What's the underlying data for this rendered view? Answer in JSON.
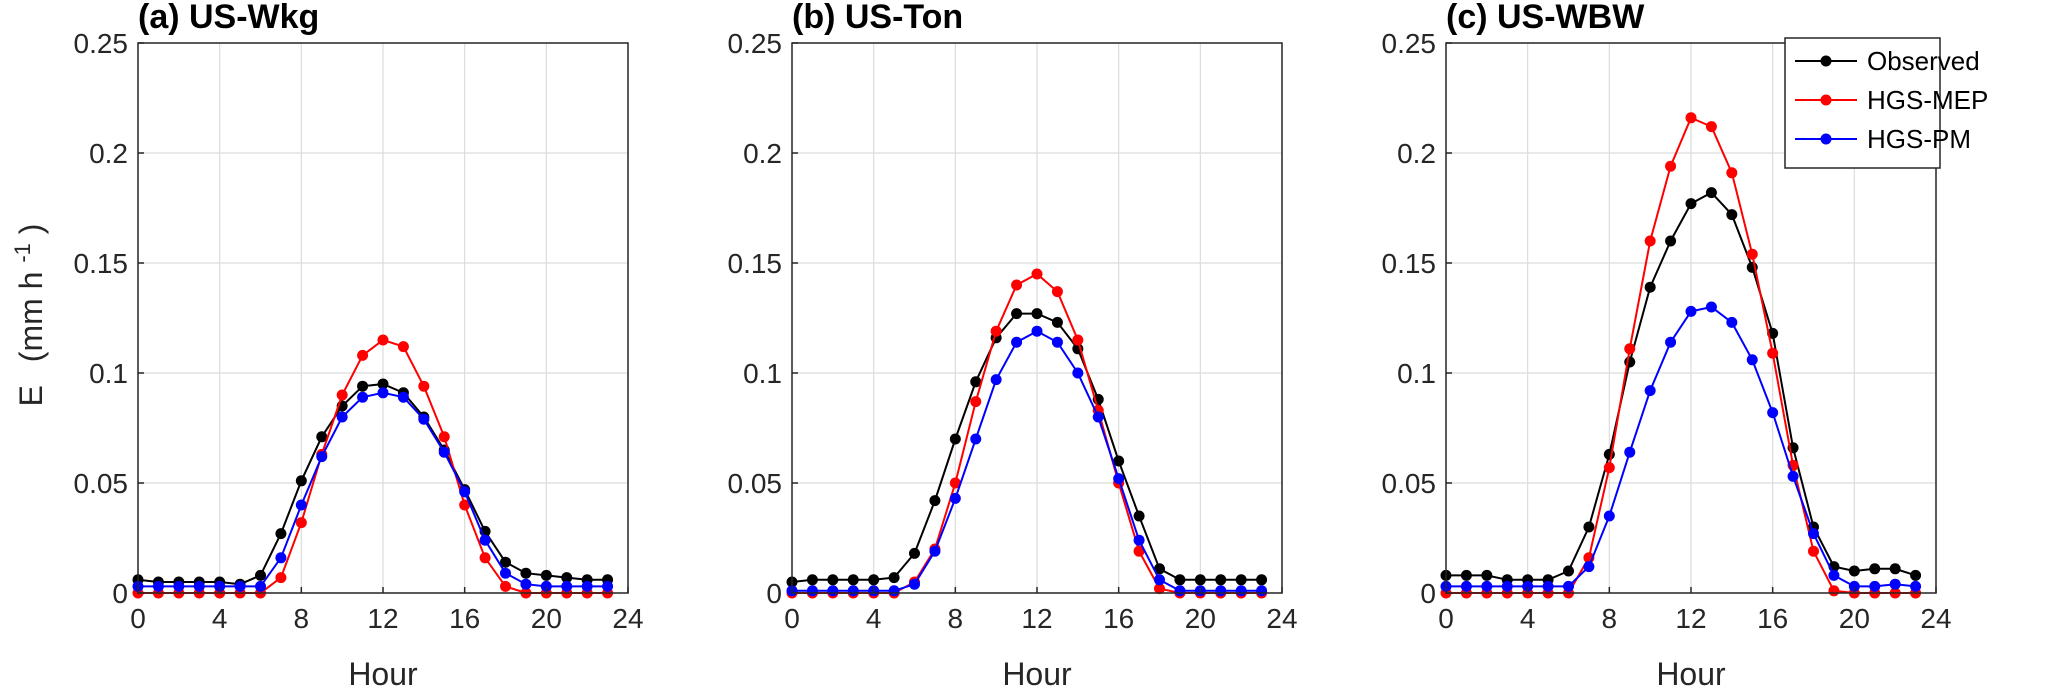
{
  "colors": {
    "observed": "#000000",
    "hgs_mep": "#ff0000",
    "hgs_pm": "#0000ff",
    "grid": "#dcdcdc",
    "axis": "#262626"
  },
  "shared": {
    "ylabel_main": "E",
    "ylabel_unit_open": "(mm h",
    "ylabel_unit_sup": "-1",
    "ylabel_unit_close": ")",
    "xlabel": "Hour",
    "x_ticks": [
      "0",
      "4",
      "8",
      "12",
      "16",
      "20",
      "24"
    ],
    "y_ticks": [
      "0",
      "0.05",
      "0.1",
      "0.15",
      "0.2",
      "0.25"
    ],
    "legend": [
      "Observed",
      "HGS-MEP",
      "HGS-PM"
    ]
  },
  "chart_data": [
    {
      "type": "line",
      "title": "(a) US-Wkg",
      "xlabel": "Hour",
      "ylabel": "E (mm h-1)",
      "xlim": [
        0,
        24
      ],
      "ylim": [
        0,
        0.25
      ],
      "grid": true,
      "x": [
        0,
        1,
        2,
        3,
        4,
        5,
        6,
        7,
        8,
        9,
        10,
        11,
        12,
        13,
        14,
        15,
        16,
        17,
        18,
        19,
        20,
        21,
        22,
        23
      ],
      "series": [
        {
          "name": "Observed",
          "values": [
            0.006,
            0.005,
            0.005,
            0.005,
            0.005,
            0.004,
            0.008,
            0.027,
            0.051,
            0.071,
            0.085,
            0.094,
            0.095,
            0.091,
            0.08,
            0.065,
            0.047,
            0.028,
            0.014,
            0.009,
            0.008,
            0.007,
            0.006,
            0.006
          ]
        },
        {
          "name": "HGS-MEP",
          "values": [
            0.0,
            0.0,
            0.0,
            0.0,
            0.0,
            0.0,
            0.0,
            0.007,
            0.032,
            0.063,
            0.09,
            0.108,
            0.115,
            0.112,
            0.094,
            0.071,
            0.04,
            0.016,
            0.003,
            0.0,
            0.0,
            0.0,
            0.0,
            0.0
          ]
        },
        {
          "name": "HGS-PM",
          "values": [
            0.003,
            0.003,
            0.003,
            0.003,
            0.003,
            0.003,
            0.003,
            0.016,
            0.04,
            0.062,
            0.08,
            0.089,
            0.091,
            0.089,
            0.079,
            0.064,
            0.046,
            0.024,
            0.009,
            0.004,
            0.003,
            0.003,
            0.003,
            0.003
          ]
        }
      ]
    },
    {
      "type": "line",
      "title": "(b) US-Ton",
      "xlabel": "Hour",
      "ylabel": "E (mm h-1)",
      "xlim": [
        0,
        24
      ],
      "ylim": [
        0,
        0.25
      ],
      "grid": true,
      "x": [
        0,
        1,
        2,
        3,
        4,
        5,
        6,
        7,
        8,
        9,
        10,
        11,
        12,
        13,
        14,
        15,
        16,
        17,
        18,
        19,
        20,
        21,
        22,
        23
      ],
      "series": [
        {
          "name": "Observed",
          "values": [
            0.005,
            0.006,
            0.006,
            0.006,
            0.006,
            0.007,
            0.018,
            0.042,
            0.07,
            0.096,
            0.116,
            0.127,
            0.127,
            0.123,
            0.111,
            0.088,
            0.06,
            0.035,
            0.011,
            0.006,
            0.006,
            0.006,
            0.006,
            0.006
          ]
        },
        {
          "name": "HGS-MEP",
          "values": [
            0.0,
            0.0,
            0.0,
            0.0,
            0.0,
            0.0,
            0.005,
            0.02,
            0.05,
            0.087,
            0.119,
            0.14,
            0.145,
            0.137,
            0.115,
            0.083,
            0.05,
            0.019,
            0.002,
            0.0,
            0.0,
            0.0,
            0.0,
            0.0
          ]
        },
        {
          "name": "HGS-PM",
          "values": [
            0.001,
            0.001,
            0.001,
            0.001,
            0.001,
            0.001,
            0.004,
            0.019,
            0.043,
            0.07,
            0.097,
            0.114,
            0.119,
            0.114,
            0.1,
            0.08,
            0.052,
            0.024,
            0.006,
            0.001,
            0.001,
            0.001,
            0.001,
            0.001
          ]
        }
      ]
    },
    {
      "type": "line",
      "title": "(c) US-WBW",
      "xlabel": "Hour",
      "ylabel": "E (mm h-1)",
      "xlim": [
        0,
        24
      ],
      "ylim": [
        0,
        0.25
      ],
      "grid": true,
      "legend_position": "top-right",
      "x": [
        0,
        1,
        2,
        3,
        4,
        5,
        6,
        7,
        8,
        9,
        10,
        11,
        12,
        13,
        14,
        15,
        16,
        17,
        18,
        19,
        20,
        21,
        22,
        23
      ],
      "series": [
        {
          "name": "Observed",
          "values": [
            0.008,
            0.008,
            0.008,
            0.006,
            0.006,
            0.006,
            0.01,
            0.03,
            0.063,
            0.105,
            0.139,
            0.16,
            0.177,
            0.182,
            0.172,
            0.148,
            0.118,
            0.066,
            0.03,
            0.012,
            0.01,
            0.011,
            0.011,
            0.008
          ]
        },
        {
          "name": "HGS-MEP",
          "values": [
            0.0,
            0.0,
            0.0,
            0.0,
            0.0,
            0.0,
            0.0,
            0.016,
            0.057,
            0.111,
            0.16,
            0.194,
            0.216,
            0.212,
            0.191,
            0.154,
            0.109,
            0.058,
            0.019,
            0.001,
            0.0,
            0.0,
            0.0,
            0.0
          ]
        },
        {
          "name": "HGS-PM",
          "values": [
            0.003,
            0.003,
            0.003,
            0.003,
            0.003,
            0.003,
            0.003,
            0.012,
            0.035,
            0.064,
            0.092,
            0.114,
            0.128,
            0.13,
            0.123,
            0.106,
            0.082,
            0.053,
            0.027,
            0.008,
            0.003,
            0.003,
            0.004,
            0.003
          ]
        }
      ]
    }
  ]
}
